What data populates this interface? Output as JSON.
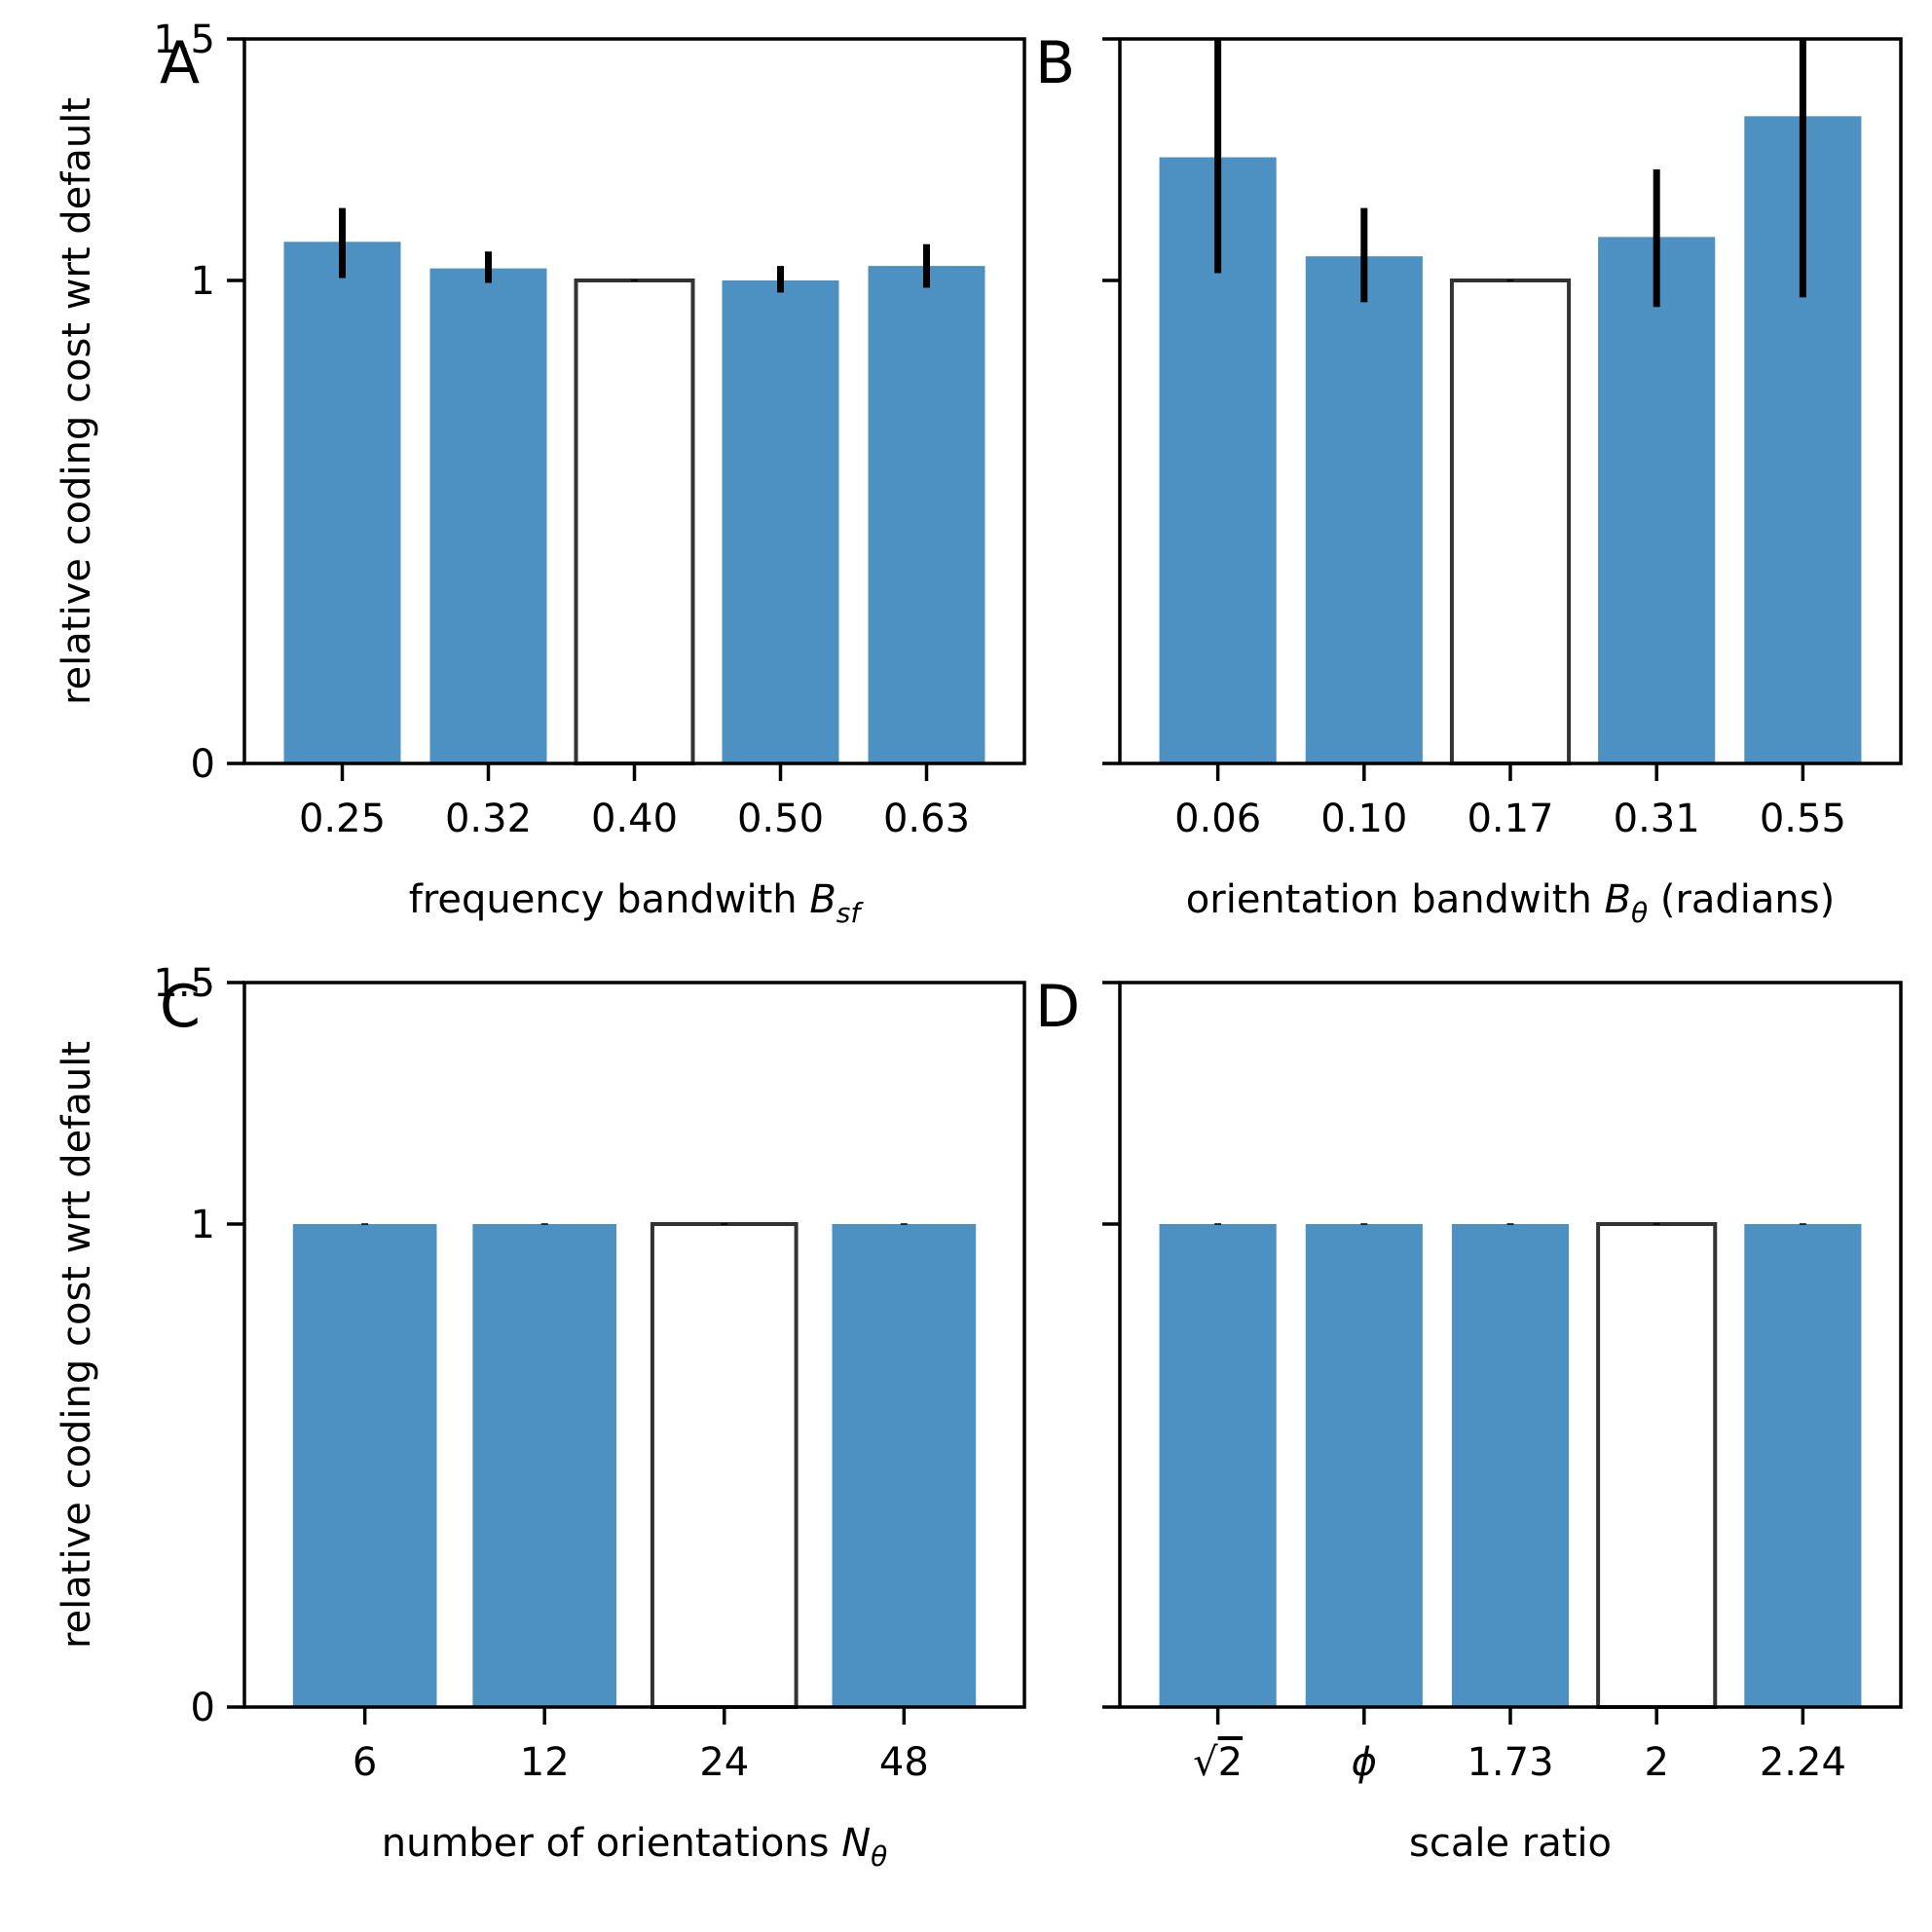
{
  "colors": {
    "bar": "#4c91c1",
    "default_bar_edge": "#333333",
    "errorbar": "#000000"
  },
  "ylabel": "relative coding cost wrt default",
  "chart_data": [
    {
      "panel": "A",
      "type": "bar",
      "ylim": [
        0,
        1.5
      ],
      "yticks": [
        {
          "v": 0,
          "label": "0"
        },
        {
          "v": 1,
          "label": "1"
        },
        {
          "v": 1.5,
          "label": "1.5"
        }
      ],
      "xlabel": {
        "pre": "frequency bandwith ",
        "sym": "B",
        "sub": "sf",
        "post": ""
      },
      "categories": [
        "0.25",
        "0.32",
        "0.40",
        "0.50",
        "0.63"
      ],
      "values": [
        1.08,
        1.025,
        1.0,
        1.0,
        1.03
      ],
      "err_low": [
        1.005,
        0.995,
        1.0,
        0.975,
        0.985
      ],
      "err_high": [
        1.15,
        1.06,
        1.0,
        1.03,
        1.075
      ],
      "default_index": 2
    },
    {
      "panel": "B",
      "type": "bar",
      "ylim": [
        0,
        1.5
      ],
      "yticks": [
        {
          "v": 0,
          "label": ""
        },
        {
          "v": 1,
          "label": ""
        },
        {
          "v": 1.5,
          "label": ""
        }
      ],
      "xlabel": {
        "pre": "orientation bandwith ",
        "sym": "B",
        "sub": "θ",
        "post": " (radians)"
      },
      "categories": [
        "0.06",
        "0.10",
        "0.17",
        "0.31",
        "0.55"
      ],
      "values": [
        1.255,
        1.05,
        1.0,
        1.09,
        1.34
      ],
      "err_low": [
        1.015,
        0.955,
        1.0,
        0.945,
        0.965
      ],
      "err_high": [
        1.5,
        1.15,
        1.0,
        1.23,
        1.5
      ],
      "default_index": 2
    },
    {
      "panel": "C",
      "type": "bar",
      "ylim": [
        0,
        1.5
      ],
      "yticks": [
        {
          "v": 0,
          "label": "0"
        },
        {
          "v": 1,
          "label": "1"
        },
        {
          "v": 1.5,
          "label": "1.5"
        }
      ],
      "xlabel": {
        "pre": "number of orientations ",
        "sym": "N",
        "sub": "θ",
        "post": ""
      },
      "categories": [
        "6",
        "12",
        "24",
        "48"
      ],
      "values": [
        1.0,
        1.0,
        1.0,
        1.0
      ],
      "err_low": [
        1.0,
        1.0,
        1.0,
        1.0
      ],
      "err_high": [
        1.0,
        1.0,
        1.0,
        1.0
      ],
      "default_index": 2
    },
    {
      "panel": "D",
      "type": "bar",
      "ylim": [
        0,
        1.5
      ],
      "yticks": [
        {
          "v": 0,
          "label": ""
        },
        {
          "v": 1,
          "label": ""
        },
        {
          "v": 1.5,
          "label": ""
        }
      ],
      "xlabel": {
        "pre": "scale ratio",
        "sym": "",
        "sub": "",
        "post": ""
      },
      "categories": [
        "√2",
        "ϕ",
        "1.73",
        "2",
        "2.24"
      ],
      "values": [
        1.0,
        1.0,
        1.0,
        1.0,
        1.0
      ],
      "err_low": [
        1.0,
        1.0,
        1.0,
        1.0,
        1.0
      ],
      "err_high": [
        1.0,
        1.0,
        1.0,
        1.0,
        1.0
      ],
      "default_index": 3
    }
  ]
}
